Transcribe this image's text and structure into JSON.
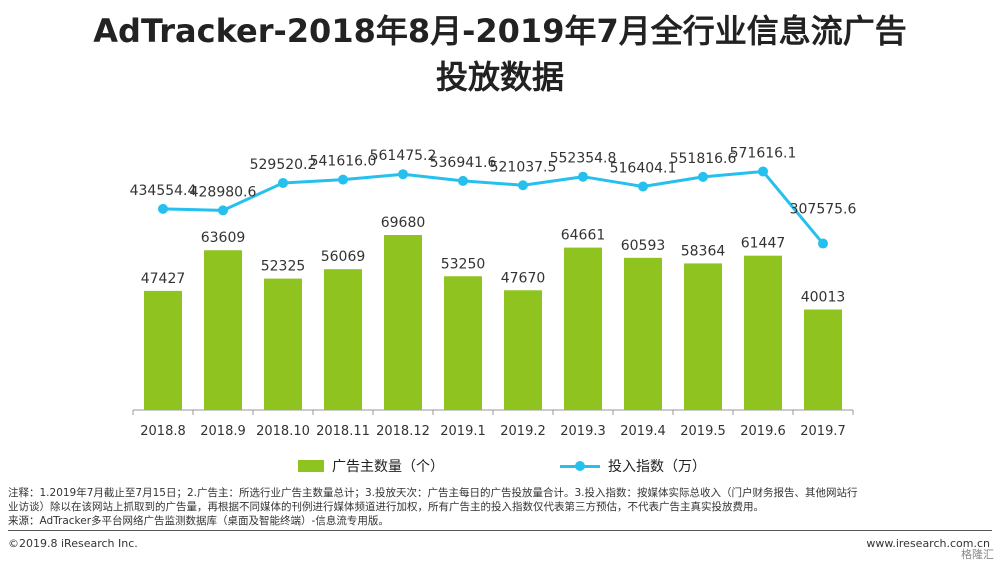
{
  "page": {
    "title_line1": "AdTracker-2018年8月-2019年7月全行业信息流广告",
    "title_line2": "投放数据",
    "note_line1": "注释：1.2019年7月截止至7月15日；2.广告主：所选行业广告主数量总计；3.投放天次：广告主每日的广告投放量合计。3.投入指数：按媒体实际总收入（门户财务报告、其他网站行",
    "note_line2": "业访谈）除以在该网站上抓取到的广告量，再根据不同媒体的刊例进行媒体频道进行加权，所有广告主的投入指数仅代表第三方预估，不代表广告主真实投放费用。",
    "note_line3": "来源：AdTracker多平台网络广告监测数据库（桌面及智能终端）-信息流专用版。",
    "footer_left": "©2019.8 iResearch Inc.",
    "footer_right": "www.iresearch.com.cn",
    "watermark": "格隆汇"
  },
  "chart_data": {
    "type": "bar",
    "title": "AdTracker-2018年8月-2019年7月全行业信息流广告投放数据",
    "categories": [
      "2018.8",
      "2018.9",
      "2018.10",
      "2018.11",
      "2018.12",
      "2019.1",
      "2019.2",
      "2019.3",
      "2019.4",
      "2019.5",
      "2019.6",
      "2019.7"
    ],
    "series": [
      {
        "name": "广告主数量（个）",
        "type": "bar",
        "color": "#8fc31f",
        "values": [
          47427,
          63609,
          52325,
          56069,
          69680,
          53250,
          47670,
          64661,
          60593,
          58364,
          61447,
          40013
        ],
        "labels": [
          "47427",
          "63609",
          "52325",
          "56069",
          "69680",
          "53250",
          "47670",
          "64661",
          "60593",
          "58364",
          "61447",
          "40013"
        ]
      },
      {
        "name": "投入指数（万）",
        "type": "line",
        "color": "#25c0ee",
        "values": [
          434554.4,
          428980.6,
          529520.2,
          541616.0,
          561475.2,
          536941.6,
          521037.5,
          552354.8,
          516404.1,
          551816.6,
          571616.1,
          307575.6
        ],
        "labels": [
          "434554.4",
          "428980.6",
          "529520.2",
          "541616.0",
          "561475.2",
          "536941.6",
          "521037.5",
          "552354.8",
          "516404.1",
          "551816.6",
          "571616.1",
          "307575.6"
        ]
      }
    ],
    "legend_position": "bottom",
    "grid": false
  }
}
